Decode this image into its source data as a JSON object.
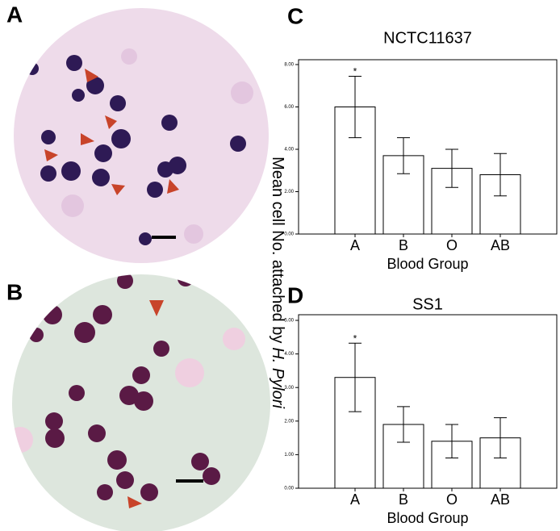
{
  "panels": [
    "A",
    "B",
    "C",
    "D"
  ],
  "ylabel": [
    "Mean cell No. attached by",
    "H. Pylori"
  ],
  "chart_data": [
    {
      "type": "bar",
      "title": "NCTC11637",
      "xlabel": "Blood Group",
      "categories": [
        "A",
        "B",
        "O",
        "AB"
      ],
      "values": [
        6.0,
        3.7,
        3.1,
        2.8
      ],
      "errors": [
        1.45,
        0.85,
        0.9,
        1.0
      ],
      "color": "#ffffff",
      "annotation": "*",
      "ylim": [
        0,
        8
      ],
      "yticks": [
        {
          "value": 0,
          "label": "0.00"
        },
        {
          "value": 2,
          "label": "2.00"
        },
        {
          "value": 4,
          "label": "4.00"
        },
        {
          "value": 6,
          "label": "6.00"
        },
        {
          "value": 8,
          "label": "8.00"
        }
      ]
    },
    {
      "type": "bar",
      "title": "SS1",
      "xlabel": "Blood Group",
      "categories": [
        "A",
        "B",
        "O",
        "AB"
      ],
      "values": [
        3.3,
        1.9,
        1.4,
        1.5
      ],
      "errors": [
        1.02,
        0.53,
        0.5,
        0.6
      ],
      "color": "#ffffff",
      "annotation": "*",
      "ylim": [
        0,
        5
      ],
      "yticks": [
        {
          "value": 0,
          "label": "0.00"
        },
        {
          "value": 1,
          "label": "1.00"
        },
        {
          "value": 2,
          "label": "2.00"
        },
        {
          "value": 3,
          "label": "3.00"
        },
        {
          "value": 4,
          "label": "4.00"
        },
        {
          "value": 5,
          "label": "5.00"
        }
      ]
    }
  ]
}
